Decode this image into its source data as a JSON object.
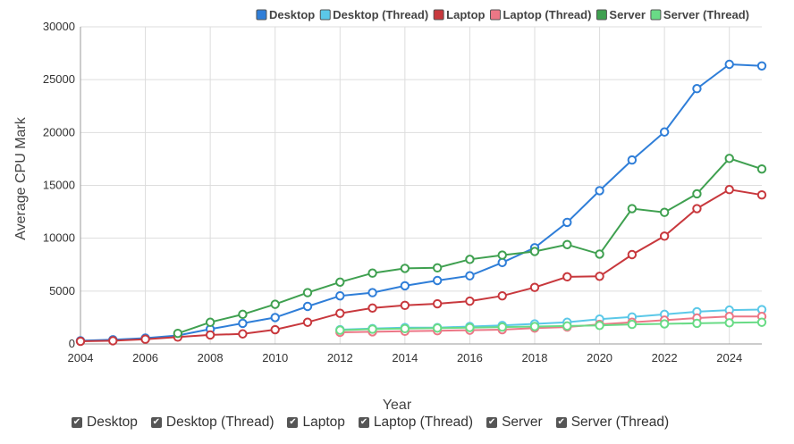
{
  "chart_data": {
    "type": "line",
    "xlabel": "Year",
    "ylabel": "Average CPU Mark",
    "x_ticks": [
      "2004",
      "2006",
      "2008",
      "2010",
      "2012",
      "2014",
      "2016",
      "2018",
      "2020",
      "2022",
      "2024"
    ],
    "y_ticks": [
      "0",
      "5000",
      "10000",
      "15000",
      "20000",
      "25000",
      "30000"
    ],
    "xlim": [
      2004,
      2025
    ],
    "ylim": [
      0,
      30000
    ],
    "grid": true,
    "legend_position": "top-right",
    "series": [
      {
        "name": "Desktop",
        "color": "#2f7ed8",
        "x": [
          2004,
          2005,
          2006,
          2007,
          2008,
          2009,
          2010,
          2011,
          2012,
          2013,
          2014,
          2015,
          2016,
          2017,
          2018,
          2019,
          2020,
          2021,
          2022,
          2023,
          2024,
          2025
        ],
        "y": [
          300,
          400,
          550,
          800,
          1400,
          1950,
          2500,
          3550,
          4550,
          4850,
          5500,
          6000,
          6450,
          7700,
          9100,
          11500,
          14500,
          17400,
          20050,
          24150,
          26450,
          26300
        ]
      },
      {
        "name": "Desktop (Thread)",
        "color": "#5bc8e8",
        "x": [
          2012,
          2013,
          2014,
          2015,
          2016,
          2017,
          2018,
          2019,
          2020,
          2021,
          2022,
          2023,
          2024,
          2025
        ],
        "y": [
          1350,
          1450,
          1550,
          1550,
          1650,
          1750,
          1900,
          2050,
          2350,
          2550,
          2800,
          3050,
          3200,
          3250
        ]
      },
      {
        "name": "Laptop",
        "color": "#c8383d",
        "x": [
          2004,
          2005,
          2006,
          2007,
          2008,
          2009,
          2010,
          2011,
          2012,
          2013,
          2014,
          2015,
          2016,
          2017,
          2018,
          2019,
          2020,
          2021,
          2022,
          2023,
          2024,
          2025
        ],
        "y": [
          250,
          300,
          450,
          650,
          850,
          950,
          1350,
          2050,
          2900,
          3400,
          3650,
          3800,
          4050,
          4550,
          5350,
          6350,
          6400,
          8450,
          10200,
          12800,
          14600,
          14100
        ]
      },
      {
        "name": "Laptop (Thread)",
        "color": "#ec7786",
        "x": [
          2012,
          2013,
          2014,
          2015,
          2016,
          2017,
          2018,
          2019,
          2020,
          2021,
          2022,
          2023,
          2024,
          2025
        ],
        "y": [
          1100,
          1150,
          1200,
          1250,
          1300,
          1350,
          1500,
          1600,
          1850,
          2050,
          2250,
          2450,
          2600,
          2600
        ]
      },
      {
        "name": "Server",
        "color": "#3fa050",
        "x": [
          2007,
          2008,
          2009,
          2010,
          2011,
          2012,
          2013,
          2014,
          2015,
          2016,
          2017,
          2018,
          2019,
          2020,
          2021,
          2022,
          2023,
          2024,
          2025
        ],
        "y": [
          1000,
          2050,
          2800,
          3750,
          4850,
          5850,
          6700,
          7150,
          7200,
          8000,
          8400,
          8750,
          9400,
          8500,
          12800,
          12450,
          14200,
          17550,
          16550
        ]
      },
      {
        "name": "Server (Thread)",
        "color": "#69db86",
        "x": [
          2012,
          2013,
          2014,
          2015,
          2016,
          2017,
          2018,
          2019,
          2020,
          2021,
          2022,
          2023,
          2024,
          2025
        ],
        "y": [
          1300,
          1400,
          1450,
          1500,
          1550,
          1600,
          1650,
          1700,
          1750,
          1850,
          1900,
          1950,
          2000,
          2050
        ]
      }
    ]
  },
  "legend": {
    "checkmark_glyph": "✔"
  }
}
